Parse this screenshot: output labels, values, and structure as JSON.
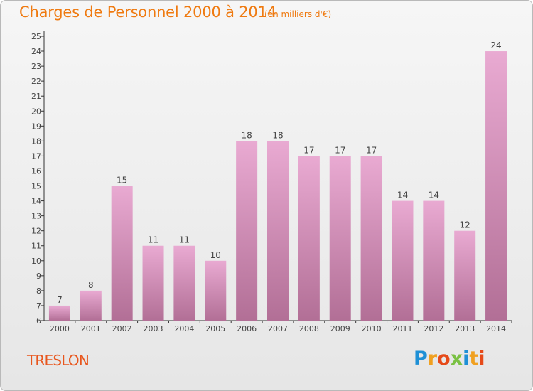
{
  "header": {
    "title": "Charges de Personnel 2000 à 2014",
    "subtitle": "(en milliers d'€)"
  },
  "footer": {
    "place": "TRESLON",
    "logo": [
      "P",
      "r",
      "o",
      "x",
      "i",
      "t",
      "i"
    ],
    "logo_colors": [
      "#1e90d6",
      "#f0a020",
      "#e64a19",
      "#7ac143",
      "#1e90d6",
      "#f0a020",
      "#e64a19"
    ]
  },
  "colors": {
    "bar_light": "#e9aad2",
    "bar_dark": "#b26f96",
    "axis": "#333333",
    "grid": "#cfcfcf"
  },
  "chart_data": {
    "type": "bar",
    "title": "Charges de Personnel 2000 à 2014",
    "subtitle": "(en milliers d'€)",
    "categories": [
      "2000",
      "2001",
      "2002",
      "2003",
      "2004",
      "2005",
      "2006",
      "2007",
      "2008",
      "2009",
      "2010",
      "2011",
      "2012",
      "2013",
      "2014"
    ],
    "values": [
      7,
      8,
      15,
      11,
      11,
      10,
      18,
      18,
      17,
      17,
      17,
      14,
      14,
      12,
      24
    ],
    "ylim": [
      6,
      25
    ],
    "yticks": [
      6,
      7,
      8,
      9,
      10,
      11,
      12,
      13,
      14,
      15,
      16,
      17,
      18,
      19,
      20,
      21,
      22,
      23,
      24,
      25
    ],
    "grid": false,
    "data_labels": true
  }
}
